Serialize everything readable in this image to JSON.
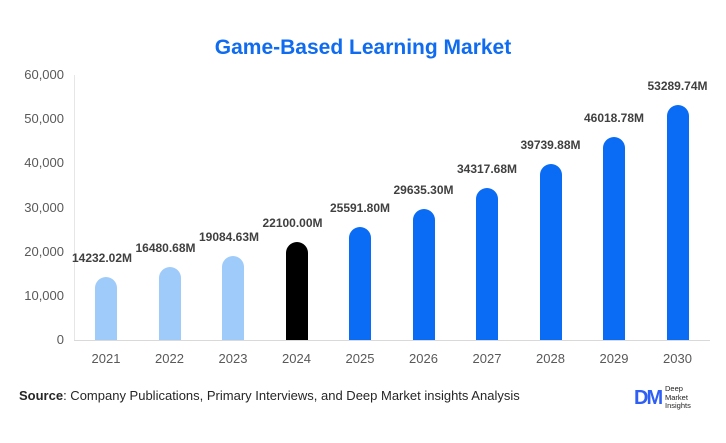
{
  "chart_data": {
    "type": "bar",
    "title": "Game-Based Learning Market",
    "xlabel": "",
    "ylabel": "",
    "ylim": [
      0,
      60000
    ],
    "yticks": [
      "0",
      "10,000",
      "20,000",
      "30,000",
      "40,000",
      "50,000",
      "60,000"
    ],
    "categories": [
      "2021",
      "2022",
      "2023",
      "2024",
      "2025",
      "2026",
      "2027",
      "2028",
      "2029",
      "2030"
    ],
    "values": [
      14232.02,
      16480.68,
      19084.63,
      22100.0,
      25591.8,
      29635.3,
      34317.68,
      39739.88,
      46018.78,
      53289.74
    ],
    "labels": [
      "14232.02M",
      "16480.68M",
      "19084.63M",
      "22100.00M",
      "25591.80M",
      "29635.30M",
      "34317.68M",
      "39739.88M",
      "46018.78M",
      "53289.74M"
    ],
    "colors": [
      "#9fcbfb",
      "#9fcbfb",
      "#9fcbfb",
      "#000000",
      "#0a6cf5",
      "#0a6cf5",
      "#0a6cf5",
      "#0a6cf5",
      "#0a6cf5",
      "#0a6cf5"
    ],
    "grid": false,
    "legend": "none"
  },
  "title": "Game-Based Learning Market",
  "source": {
    "label": "Source",
    "text": ": Company Publications, Primary Interviews, and Deep Market insights Analysis"
  },
  "logo": {
    "mark": "DM",
    "line1": "Deep",
    "line2": "Market",
    "line3": "Insights"
  },
  "colors": {
    "title": "#0f6bf0",
    "historical": "#9fcbfb",
    "base_year": "#000000",
    "forecast": "#0a6cf5"
  }
}
